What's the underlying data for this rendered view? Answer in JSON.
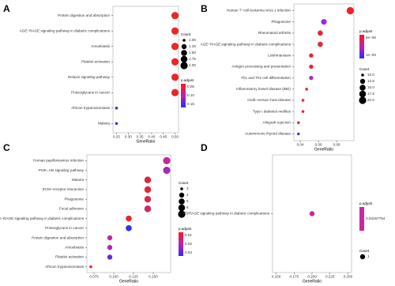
{
  "chart_data": [
    {
      "type": "dot",
      "panel": "A",
      "xlabel": "GeneRatio",
      "categories": [
        "Protein digestion and absorption",
        "AGE−RAGE signaling pathway in diabetic complications",
        "Amoebiasis",
        "Platelet activation",
        "Relaxin signaling pathway",
        "Proteoglycans in cancer",
        "African trypanosomiasis",
        "Malaria"
      ],
      "values": [
        0.5,
        0.5,
        0.5,
        0.5,
        0.5,
        0.5,
        0.25,
        0.25
      ],
      "counts": [
        2,
        2,
        2,
        2,
        2,
        2,
        1,
        1
      ],
      "colors": [
        "#e8262b",
        "#e8262b",
        "#e8262b",
        "#e8262b",
        "#e8262b",
        "#e8262b",
        "#3b2fe0",
        "#2c35e8"
      ],
      "xlim": [
        0.235,
        0.515
      ],
      "xticks": [
        {
          "value": 0.25,
          "label": "0.25"
        },
        {
          "value": 0.3,
          "label": "0.30"
        },
        {
          "value": 0.35,
          "label": "0.35"
        },
        {
          "value": 0.4,
          "label": "0.40"
        },
        {
          "value": 0.45,
          "label": "0.45"
        },
        {
          "value": 0.5,
          "label": "0.50"
        }
      ],
      "size_legend": {
        "title": "Count",
        "entries": [
          {
            "value": 1,
            "label": "1.00"
          },
          {
            "value": 1.25,
            "label": "1.25"
          },
          {
            "value": 1.5,
            "label": "1.50"
          },
          {
            "value": 1.75,
            "label": "1.75"
          },
          {
            "value": 2,
            "label": "2.00"
          }
        ]
      },
      "color_legend": {
        "title": "p.adjust",
        "labels": [
          "0.05",
          "0.10",
          "0.15"
        ]
      }
    },
    {
      "type": "dot",
      "panel": "B",
      "xlabel": "GeneRatio",
      "categories": [
        "Human T−cell leukemia virus 1 infection",
        "Phagosome",
        "Rheumatoid arthritis",
        "AGE−RAGE signaling pathway in diabetic complications",
        "Leishmaniasis",
        "Antigen processing and presentation",
        "Th1 and Th2 cell differentiation",
        "Inflammatory bowel disease (IBD)",
        "Graft−versus−host disease",
        "Type I diabetes mellitus",
        "Allograft rejection",
        "Autoimmune thyroid disease"
      ],
      "values": [
        0.095,
        0.066,
        0.062,
        0.062,
        0.052,
        0.052,
        0.052,
        0.047,
        0.043,
        0.043,
        0.038,
        0.038
      ],
      "counts": [
        20,
        14,
        13,
        13,
        11,
        11,
        11,
        10,
        9,
        9,
        8,
        8
      ],
      "colors": [
        "#f0202a",
        "#9a2ad6",
        "#ea2436",
        "#e3283e",
        "#ee2230",
        "#ec2233",
        "#b02ac8",
        "#e52a3a",
        "#ee2230",
        "#ee2230",
        "#e72838",
        "#5a2ee0"
      ],
      "xlim": [
        0.033,
        0.099
      ],
      "xticks": [
        {
          "value": 0.04,
          "label": "0.04"
        },
        {
          "value": 0.06,
          "label": "0.06"
        },
        {
          "value": 0.08,
          "label": "0.08"
        }
      ],
      "size_legend": {
        "title": "Count",
        "entries": [
          {
            "value": 10,
            "label": "10.0"
          },
          {
            "value": 12.5,
            "label": "12.5"
          },
          {
            "value": 15,
            "label": "15.0"
          },
          {
            "value": 17.5,
            "label": "17.5"
          },
          {
            "value": 20,
            "label": "20.0"
          }
        ]
      },
      "color_legend": {
        "title": "p.adjust",
        "labels": [
          "5e−06",
          "1e−05"
        ]
      }
    },
    {
      "type": "dot",
      "panel": "C",
      "xlabel": "GeneRatio",
      "categories": [
        "Human papillomavirus infection",
        "PI3K−Akt signaling pathway",
        "Malaria",
        "ECM−receptor interaction",
        "Phagosome",
        "Focal adhesion",
        "AGE−RAGE signaling pathway in diabetic complications",
        "Proteoglycans in cancer",
        "Protein digestion and absorption",
        "Amoebiasis",
        "Platelet activation",
        "African trypanosomiasis"
      ],
      "values": [
        0.167,
        0.167,
        0.143,
        0.143,
        0.143,
        0.143,
        0.119,
        0.119,
        0.095,
        0.095,
        0.095,
        0.071
      ],
      "counts": [
        7,
        7,
        6,
        6,
        6,
        6,
        5,
        5,
        4,
        4,
        4,
        3
      ],
      "colors": [
        "#c12a9a",
        "#a82ab8",
        "#d8283a",
        "#e2283a",
        "#d82a4a",
        "#d2285a",
        "#e8262b",
        "#2c35e8",
        "#c1289e",
        "#b02ab0",
        "#5a2edc",
        "#e8262b"
      ],
      "xlim": [
        0.066,
        0.172
      ],
      "xticks": [
        {
          "value": 0.075,
          "label": "0.075"
        },
        {
          "value": 0.1,
          "label": "0.100"
        },
        {
          "value": 0.125,
          "label": "0.125"
        },
        {
          "value": 0.15,
          "label": "0.150"
        }
      ],
      "size_legend": {
        "title": "Count",
        "entries": [
          {
            "value": 3,
            "label": "3"
          },
          {
            "value": 4,
            "label": "4"
          },
          {
            "value": 5,
            "label": "5"
          },
          {
            "value": 6,
            "label": "6"
          },
          {
            "value": 7,
            "label": "7"
          }
        ]
      },
      "color_legend": {
        "title": "p.adjust",
        "labels": [
          "0.01",
          "0.02",
          "0.03"
        ]
      }
    },
    {
      "type": "dot",
      "panel": "D",
      "xlabel": "GeneRatio",
      "categories": [
        "AGE−RAGE signaling pathway in diabetic complications"
      ],
      "values": [
        0.2
      ],
      "counts": [
        1
      ],
      "colors": [
        "#c8289a"
      ],
      "xlim": [
        0.145,
        0.255
      ],
      "xticks": [
        {
          "value": 0.15,
          "label": "0.150"
        },
        {
          "value": 0.175,
          "label": "0.175"
        },
        {
          "value": 0.2,
          "label": "0.200"
        },
        {
          "value": 0.225,
          "label": "0.225"
        },
        {
          "value": 0.25,
          "label": "0.250"
        }
      ],
      "size_legend": {
        "title": "Count",
        "entries": [
          {
            "value": 1,
            "label": "1"
          }
        ]
      },
      "color_legend": {
        "title": "p.adjust",
        "labels": [
          "0.04267794"
        ]
      }
    }
  ]
}
